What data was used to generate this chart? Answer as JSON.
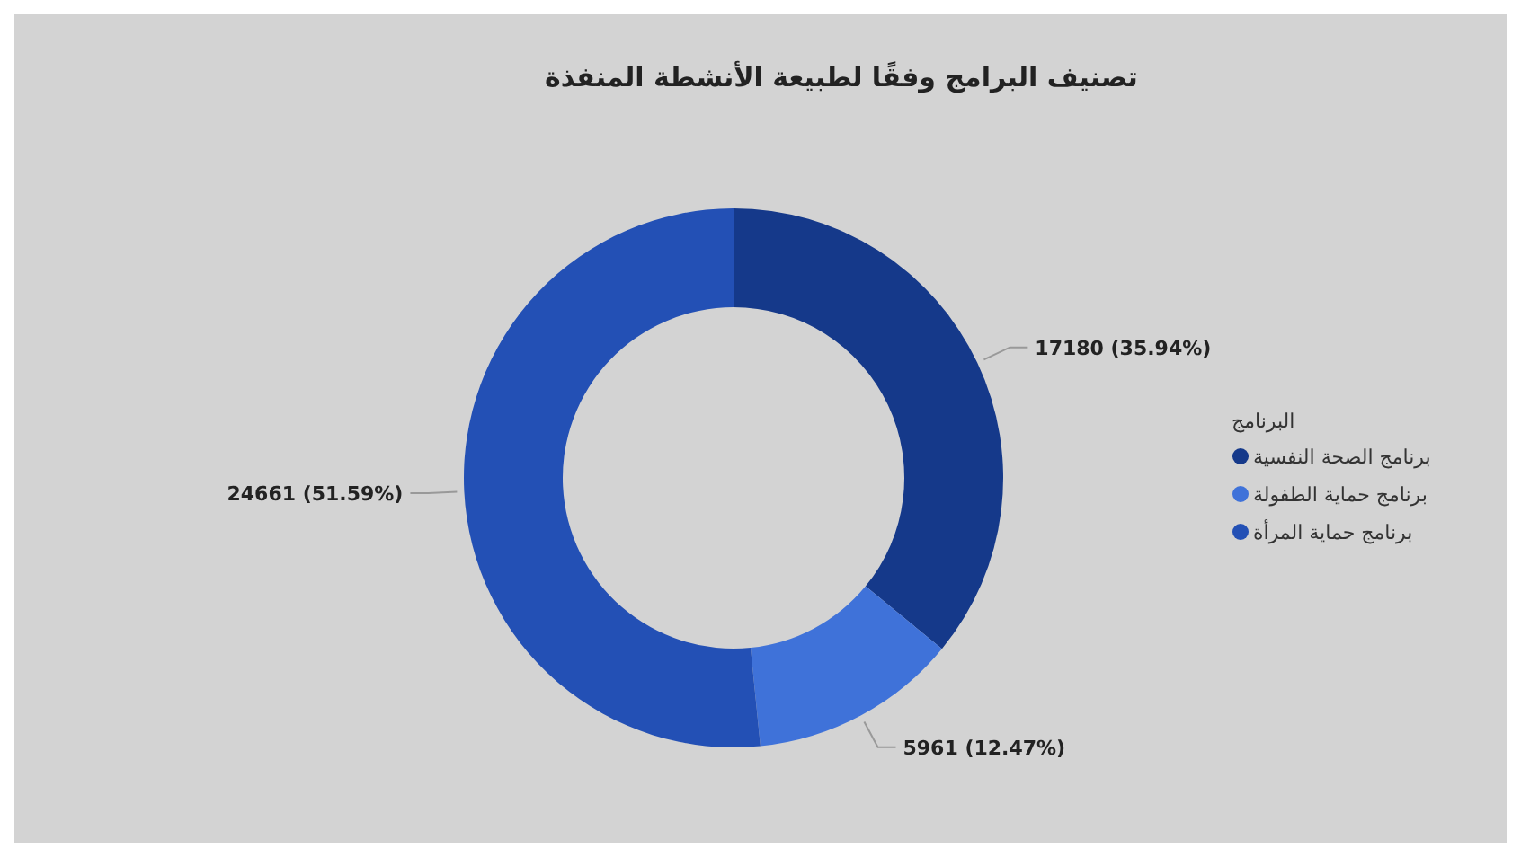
{
  "chart_data": {
    "type": "donut",
    "title": "تصنيف البرامج وفقًا لطبيعة الأنشطة المنفذة",
    "legend_title": "البرنامج",
    "legend": "right",
    "categories": [
      "برنامج الصحة النفسية",
      "برنامج حماية الطفولة",
      "برنامج حماية المرأة"
    ],
    "values": [
      17180,
      5961,
      24661
    ],
    "colors": [
      "#15398a",
      "#3f72d9",
      "#2350b5"
    ],
    "value_labels": [
      "17180 (35.94%)",
      "5961 (12.47%)",
      "24661 (51.59%)"
    ]
  }
}
